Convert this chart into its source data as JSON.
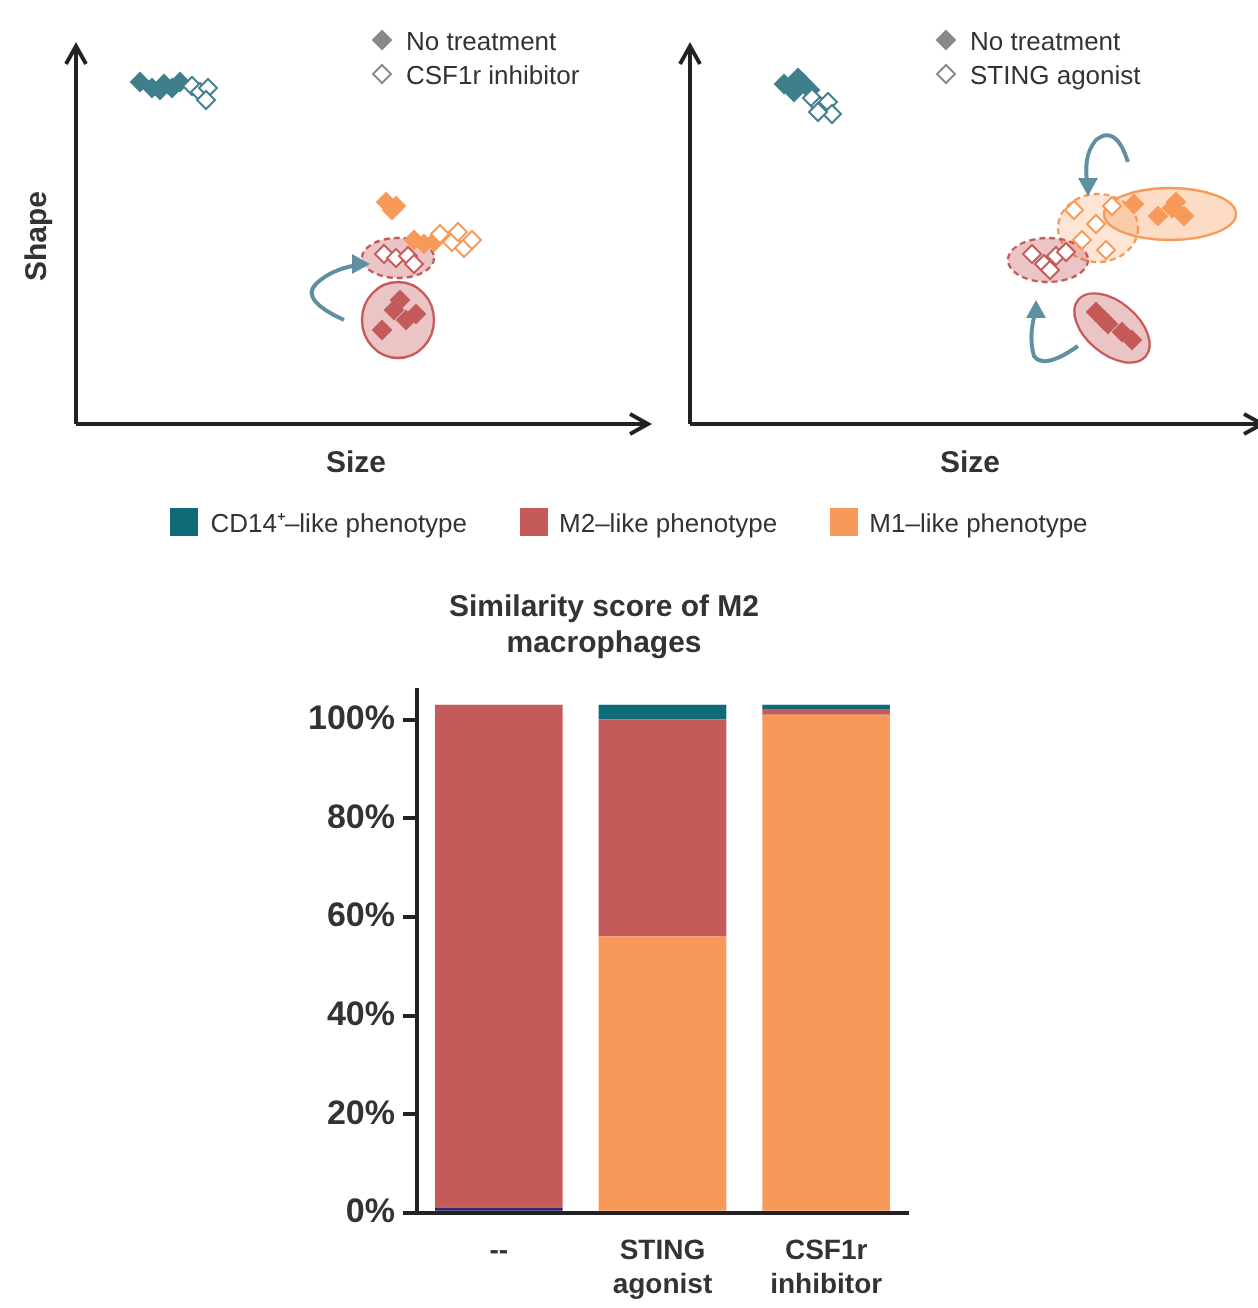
{
  "chart_data": [
    {
      "type": "other",
      "xlabel": "Size",
      "ylabel": "Shape",
      "annotations": [
        "No treatment",
        "CSF1r inhibitor"
      ]
    },
    {
      "type": "other",
      "xlabel": "Size",
      "annotations": [
        "No treatment",
        "STING agonist"
      ]
    },
    {
      "type": "bar",
      "title": "Similarity score of M2 macrophages",
      "categories": [
        "--",
        "STING agonist",
        "CSF1r inhibitor"
      ],
      "stacked": true,
      "legend": "top",
      "grid": false,
      "series": [
        {
          "color": "#2b2a6b",
          "values": [
            1,
            null,
            null
          ]
        },
        {
          "name": "M1–like phenotype",
          "color": "#f79a59",
          "values": [
            null,
            56,
            101
          ]
        },
        {
          "name": "M2–like phenotype",
          "color": "#c55a5a",
          "values": [
            102,
            44,
            1
          ]
        },
        {
          "name": "CD14⁺–like phenotype",
          "color": "#0f6b78",
          "values": [
            null,
            3,
            1
          ]
        }
      ],
      "ylim": [
        0,
        106
      ],
      "yticks": [
        {
          "value": 0,
          "label": "0%"
        },
        {
          "value": 20,
          "label": "20%"
        },
        {
          "value": 40,
          "label": "40%"
        },
        {
          "value": 60,
          "label": "60%"
        },
        {
          "value": 80,
          "label": "80%"
        },
        {
          "value": 100,
          "label": "100%"
        }
      ]
    }
  ]
}
